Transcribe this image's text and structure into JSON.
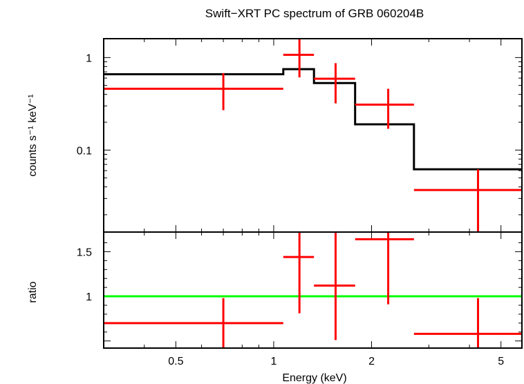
{
  "chart_data": [
    {
      "type": "step-spectrum",
      "title": "Swift−XRT PC spectrum of GRB 060204B",
      "xlabel": "",
      "ylabel": "counts s⁻¹ keV⁻¹",
      "xscale": "log",
      "yscale": "log",
      "xlim": [
        0.3,
        5.8
      ],
      "ylim": [
        0.013,
        1.6
      ],
      "yticks": [
        {
          "value": 0.1,
          "label": "0.1"
        },
        {
          "value": 1,
          "label": "1"
        }
      ],
      "series": [
        {
          "kind": "data",
          "color": "#ff0000",
          "points": [
            {
              "x": 0.7,
              "xlo": 0.3,
              "xhi": 1.07,
              "y": 0.46,
              "ylo": 0.27,
              "yhi": 0.68
            },
            {
              "x": 1.2,
              "xlo": 1.07,
              "xhi": 1.33,
              "y": 1.07,
              "ylo": 0.61,
              "yhi": 1.6
            },
            {
              "x": 1.55,
              "xlo": 1.33,
              "xhi": 1.78,
              "y": 0.59,
              "ylo": 0.32,
              "yhi": 0.87
            },
            {
              "x": 2.25,
              "xlo": 1.78,
              "xhi": 2.7,
              "y": 0.31,
              "ylo": 0.17,
              "yhi": 0.46
            },
            {
              "x": 4.25,
              "xlo": 2.7,
              "xhi": 5.8,
              "y": 0.037,
              "ylo": 0.013,
              "yhi": 0.062
            }
          ]
        },
        {
          "kind": "model",
          "color": "#000000",
          "steps": [
            {
              "xlo": 0.3,
              "xhi": 1.07,
              "y": 0.66
            },
            {
              "xlo": 1.07,
              "xhi": 1.33,
              "y": 0.75
            },
            {
              "xlo": 1.33,
              "xhi": 1.78,
              "y": 0.53
            },
            {
              "xlo": 1.78,
              "xhi": 2.7,
              "y": 0.19
            },
            {
              "xlo": 2.7,
              "xhi": 5.8,
              "y": 0.062
            }
          ]
        }
      ]
    },
    {
      "type": "ratio",
      "xlabel": "Energy (keV)",
      "ylabel": "ratio",
      "xscale": "log",
      "xlim": [
        0.3,
        5.8
      ],
      "ylim": [
        0.42,
        1.72
      ],
      "xticks": [
        {
          "value": 0.5,
          "label": "0.5"
        },
        {
          "value": 1,
          "label": "1"
        },
        {
          "value": 2,
          "label": "2"
        },
        {
          "value": 5,
          "label": "5"
        }
      ],
      "yticks": [
        {
          "value": 1,
          "label": "1"
        },
        {
          "value": 1.5,
          "label": "1.5"
        }
      ],
      "reference_line": {
        "y": 1,
        "color": "#00ff00"
      },
      "series": [
        {
          "kind": "data",
          "color": "#ff0000",
          "points": [
            {
              "x": 0.7,
              "xlo": 0.3,
              "xhi": 1.07,
              "y": 0.7,
              "ylo": 0.42,
              "yhi": 0.98
            },
            {
              "x": 1.2,
              "xlo": 1.07,
              "xhi": 1.33,
              "y": 1.44,
              "ylo": 0.81,
              "yhi": 1.72
            },
            {
              "x": 1.55,
              "xlo": 1.33,
              "xhi": 1.78,
              "y": 1.12,
              "ylo": 0.51,
              "yhi": 1.72
            },
            {
              "x": 2.25,
              "xlo": 1.78,
              "xhi": 2.7,
              "y": 1.64,
              "ylo": 0.91,
              "yhi": 1.72
            },
            {
              "x": 4.25,
              "xlo": 2.7,
              "xhi": 5.8,
              "y": 0.58,
              "ylo": 0.42,
              "yhi": 0.98
            }
          ]
        }
      ]
    }
  ]
}
